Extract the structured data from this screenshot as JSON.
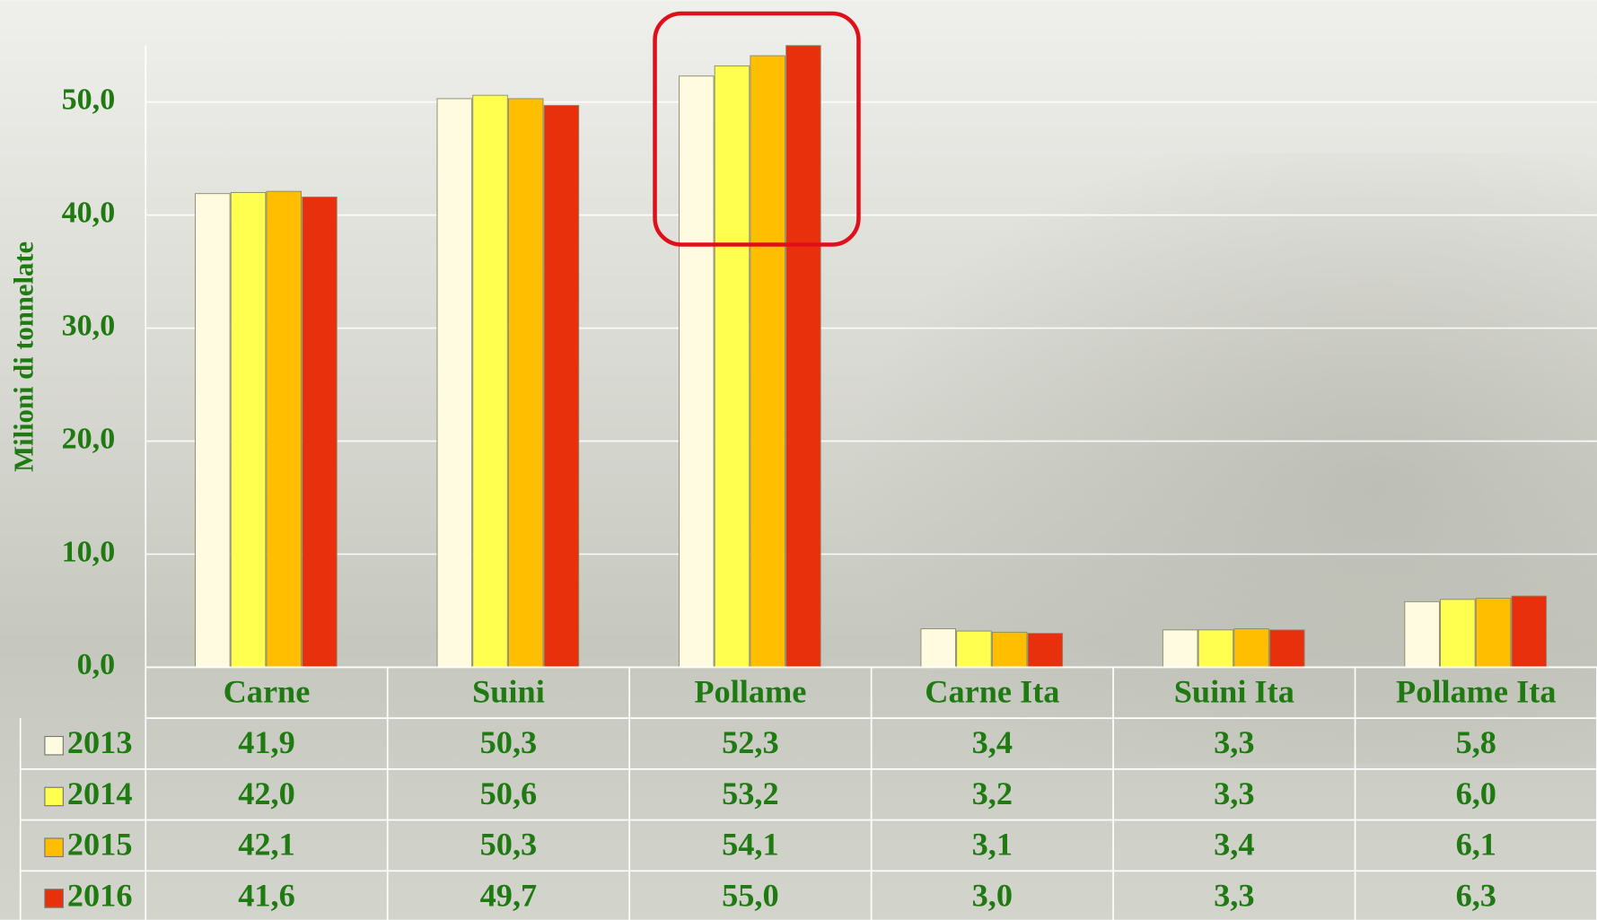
{
  "chart_data": {
    "type": "bar",
    "y_label": "Milioni di tonnelate",
    "categories": [
      "Carne",
      "Suini",
      "Pollame",
      "Carne Ita",
      "Suini Ita",
      "Pollame Ita"
    ],
    "series": [
      {
        "name": "2013",
        "color": "#fffbe0",
        "values": [
          41.9,
          50.3,
          52.3,
          3.4,
          3.3,
          5.8
        ],
        "value_labels": [
          "41,9",
          "50,3",
          "52,3",
          "3,4",
          "3,3",
          "5,8"
        ]
      },
      {
        "name": "2014",
        "color": "#ffff50",
        "values": [
          42.0,
          50.6,
          53.2,
          3.2,
          3.3,
          6.0
        ],
        "value_labels": [
          "42,0",
          "50,6",
          "53,2",
          "3,2",
          "3,3",
          "6,0"
        ]
      },
      {
        "name": "2015",
        "color": "#ffbf00",
        "values": [
          42.1,
          50.3,
          54.1,
          3.1,
          3.4,
          6.1
        ],
        "value_labels": [
          "42,1",
          "50,3",
          "54,1",
          "3,1",
          "3,4",
          "6,1"
        ]
      },
      {
        "name": "2016",
        "color": "#e8300c",
        "values": [
          41.6,
          49.7,
          55.0,
          3.0,
          3.3,
          6.3
        ],
        "value_labels": [
          "41,6",
          "49,7",
          "55,0",
          "3,0",
          "3,3",
          "6,3"
        ]
      }
    ],
    "ylim": [
      0,
      55
    ],
    "yticks": [
      {
        "value": 0,
        "label": "0,0"
      },
      {
        "value": 10,
        "label": "10,0"
      },
      {
        "value": 20,
        "label": "20,0"
      },
      {
        "value": 30,
        "label": "30,0"
      },
      {
        "value": 40,
        "label": "40,0"
      },
      {
        "value": 50,
        "label": "50,0"
      }
    ],
    "grid": true
  }
}
